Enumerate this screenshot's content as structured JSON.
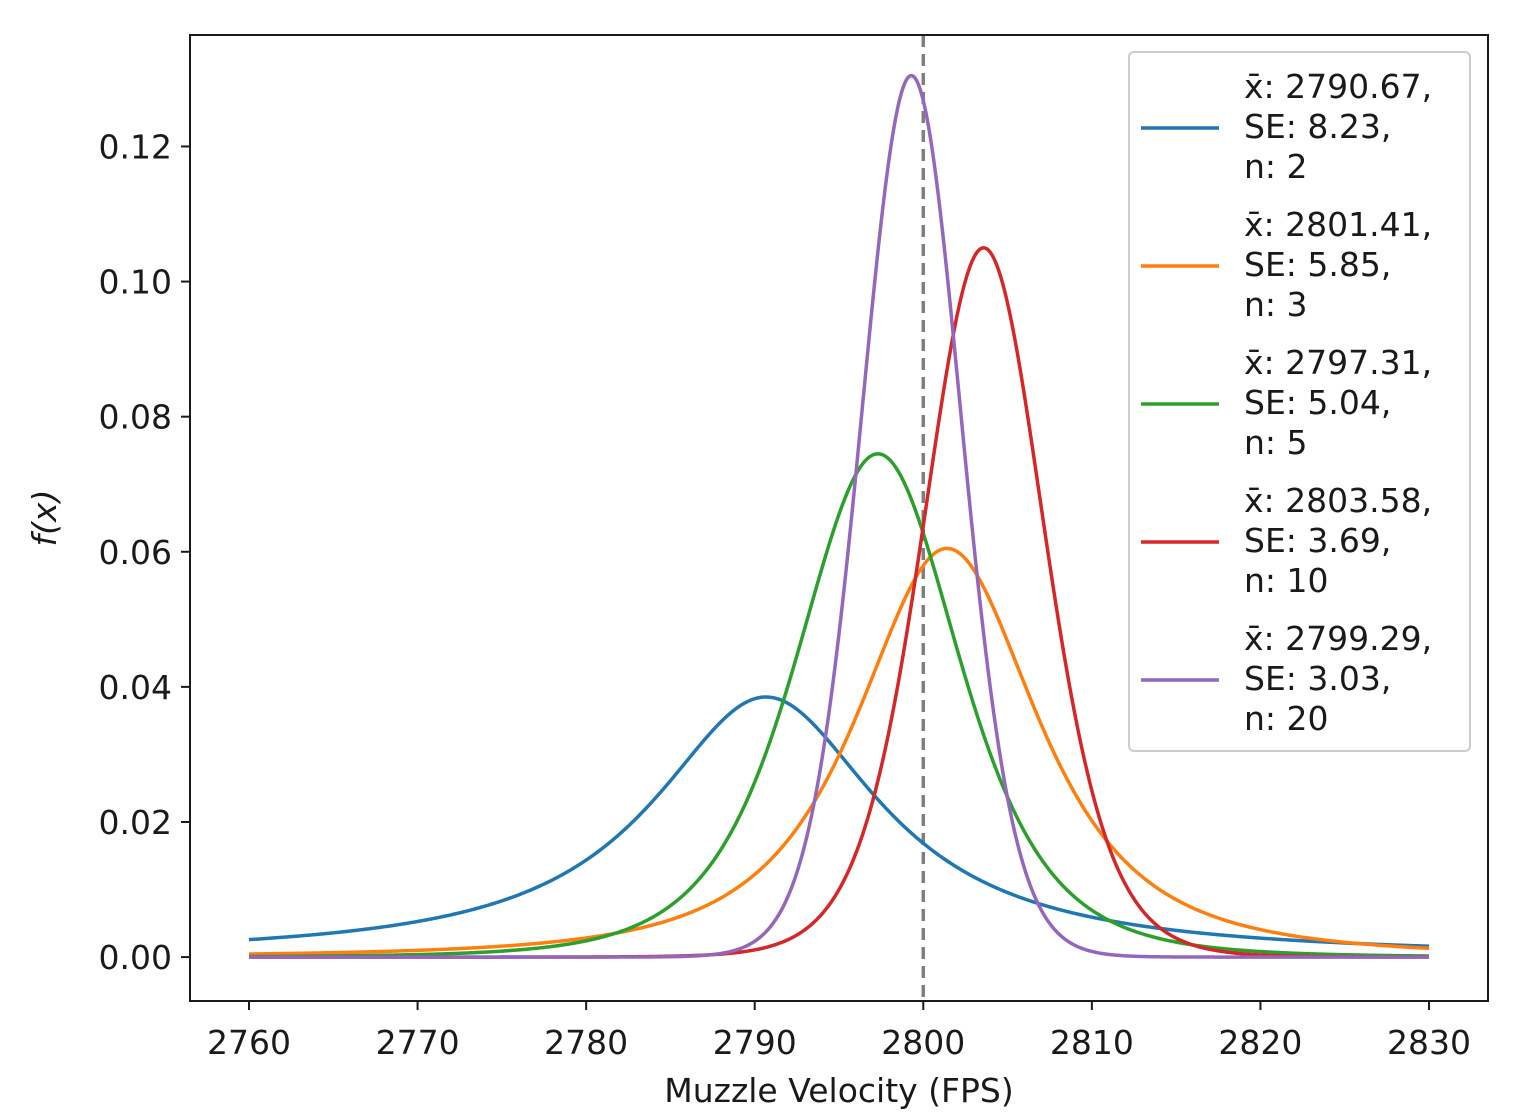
{
  "chart_data": {
    "type": "line",
    "title": "",
    "xlabel": "Muzzle Velocity (FPS)",
    "ylabel": "f(x)",
    "xlim": [
      2756.5,
      2833.5
    ],
    "ylim": [
      -0.0065,
      0.1365
    ],
    "xticks": [
      2760,
      2770,
      2780,
      2790,
      2800,
      2810,
      2820,
      2830
    ],
    "xtick_labels": [
      "2760",
      "2770",
      "2780",
      "2790",
      "2800",
      "2810",
      "2820",
      "2830"
    ],
    "yticks": [
      0.0,
      0.02,
      0.04,
      0.06,
      0.08,
      0.1,
      0.12
    ],
    "ytick_labels": [
      "0.00",
      "0.02",
      "0.04",
      "0.06",
      "0.08",
      "0.10",
      "0.12"
    ],
    "x_range": [
      2760,
      2830
    ],
    "grid": false,
    "legend_position": "top-right",
    "reference_line": {
      "x": 2800,
      "style": "dashed",
      "color": "#7f7f7f"
    },
    "series": [
      {
        "label_lines": [
          "x̄: 2790.67,",
          "SE: 8.23,",
          "n: 2"
        ],
        "distribution": "student-t",
        "mean": 2790.67,
        "se": 8.23,
        "n": 2,
        "peak_y": 0.0385,
        "color": "#1f77b4"
      },
      {
        "label_lines": [
          "x̄: 2801.41,",
          "SE: 5.85,",
          "n: 3"
        ],
        "distribution": "student-t",
        "mean": 2801.41,
        "se": 5.85,
        "n": 3,
        "peak_y": 0.0605,
        "color": "#ff7f0e"
      },
      {
        "label_lines": [
          "x̄: 2797.31,",
          "SE: 5.04,",
          "n: 5"
        ],
        "distribution": "student-t",
        "mean": 2797.31,
        "se": 5.04,
        "n": 5,
        "peak_y": 0.0745,
        "color": "#2ca02c"
      },
      {
        "label_lines": [
          "x̄: 2803.58,",
          "SE: 3.69,",
          "n: 10"
        ],
        "distribution": "student-t",
        "mean": 2803.58,
        "se": 3.69,
        "n": 10,
        "peak_y": 0.105,
        "color": "#d62728"
      },
      {
        "label_lines": [
          "x̄: 2799.29,",
          "SE: 3.03,",
          "n: 20"
        ],
        "distribution": "student-t",
        "mean": 2799.29,
        "se": 3.03,
        "n": 20,
        "peak_y": 0.1305,
        "color": "#9467bd"
      }
    ]
  }
}
